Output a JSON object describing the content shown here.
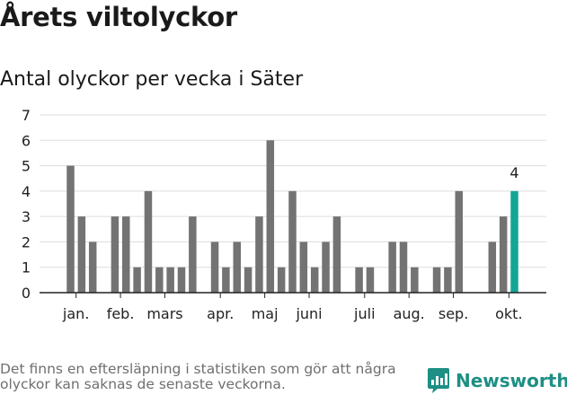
{
  "header": {
    "title": "Årets viltolyckor",
    "subtitle": "Antal olyckor per vecka i Säter"
  },
  "footer": {
    "note": "Det finns en eftersläpning i statistiken som gör att några olyckor kan saknas de senaste veckorna.",
    "brand": "Newsworthy"
  },
  "colors": {
    "bar": "#737373",
    "highlight": "#13a596",
    "grid": "#dddddd",
    "axis": "#222222",
    "brand": "#1e8f84"
  },
  "chart_data": {
    "type": "bar",
    "title": "Antal olyckor per vecka i Säter",
    "xlabel": "",
    "ylabel": "",
    "ylim": [
      0,
      7
    ],
    "yticks": [
      "0",
      "1",
      "2",
      "3",
      "4",
      "5",
      "6",
      "7"
    ],
    "weeks": [
      1,
      2,
      3,
      4,
      5,
      6,
      7,
      8,
      9,
      10,
      11,
      12,
      13,
      14,
      15,
      16,
      17,
      18,
      19,
      20,
      21,
      22,
      23,
      24,
      25,
      26,
      27,
      28,
      29,
      30,
      31,
      32,
      33,
      34,
      35,
      36,
      37,
      38,
      39,
      40,
      41,
      42
    ],
    "values": [
      5,
      3,
      2,
      0,
      3,
      3,
      1,
      4,
      1,
      1,
      1,
      3,
      0,
      2,
      1,
      2,
      1,
      3,
      6,
      1,
      4,
      2,
      1,
      2,
      3,
      0,
      1,
      1,
      0,
      2,
      2,
      1,
      0,
      1,
      1,
      4,
      0,
      0,
      2,
      3,
      4,
      null
    ],
    "highlight_index": 40,
    "highlight_label": "4",
    "months": [
      {
        "label": "jan.",
        "week": 1.5
      },
      {
        "label": "feb.",
        "week": 5.5
      },
      {
        "label": "mars",
        "week": 9.5
      },
      {
        "label": "apr.",
        "week": 14.5
      },
      {
        "label": "maj",
        "week": 18.5
      },
      {
        "label": "juni",
        "week": 22.5
      },
      {
        "label": "juli",
        "week": 27.5
      },
      {
        "label": "aug.",
        "week": 31.5
      },
      {
        "label": "sep.",
        "week": 35.5
      },
      {
        "label": "okt.",
        "week": 40.5
      }
    ]
  }
}
